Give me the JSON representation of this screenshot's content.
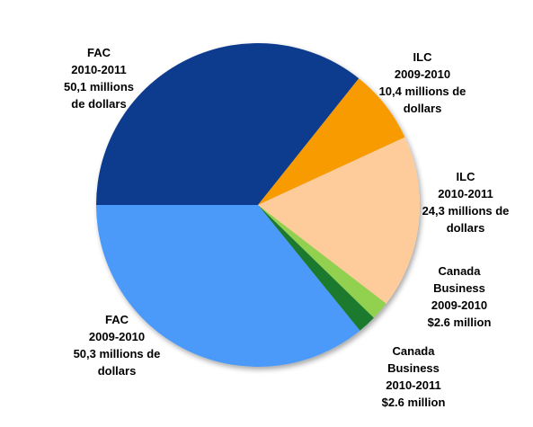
{
  "chart_data": {
    "type": "pie",
    "categories": [
      "FAC 2010-2011",
      "ILC 2009-2010",
      "ILC 2010-2011",
      "Canada Business 2009-2010",
      "Canada Business 2010-2011",
      "FAC 2009-2010"
    ],
    "values": [
      50.1,
      10.4,
      24.3,
      2.6,
      2.6,
      50.3
    ],
    "value_labels": [
      "50,1 millions de dollars",
      "10,4 millions de dollars",
      "24,3 millions de dollars",
      "$2.6 million",
      "$2.6 million",
      "50,3 millions de dollars"
    ],
    "colors": [
      "#0e3a8e",
      "#f79b00",
      "#fdcc9a",
      "#92d050",
      "#1e7a2e",
      "#4b99f8"
    ]
  }
}
